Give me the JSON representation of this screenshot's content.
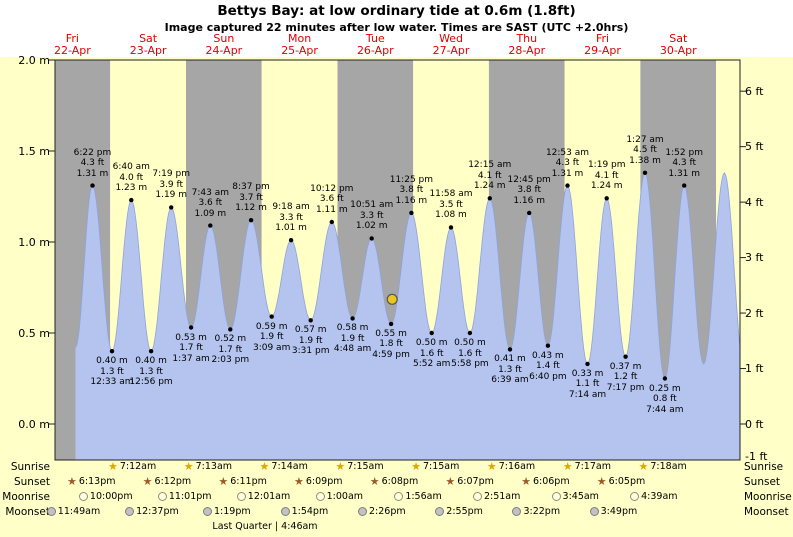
{
  "title": "Bettys Bay: at low  ordinary tide at 0.6m (1.8ft)",
  "subtitle": "Image captured 22 minutes after low water. Times are SAST (UTC +2.0hrs)",
  "days": [
    {
      "weekday": "Fri",
      "date": "22-Apr"
    },
    {
      "weekday": "Sat",
      "date": "23-Apr"
    },
    {
      "weekday": "Sun",
      "date": "24-Apr"
    },
    {
      "weekday": "Mon",
      "date": "25-Apr"
    },
    {
      "weekday": "Tue",
      "date": "26-Apr"
    },
    {
      "weekday": "Wed",
      "date": "27-Apr"
    },
    {
      "weekday": "Thu",
      "date": "28-Apr"
    },
    {
      "weekday": "Fri",
      "date": "29-Apr"
    },
    {
      "weekday": "Sat",
      "date": "30-Apr"
    }
  ],
  "axis": {
    "left_ticks": [
      "2.0 m",
      "1.5 m",
      "1.0 m",
      "0.5 m",
      "0.0 m"
    ],
    "right_ticks": [
      "6 ft",
      "5 ft",
      "4 ft",
      "3 ft",
      "2 ft",
      "1 ft",
      "0 ft",
      "-1 ft"
    ]
  },
  "chart_data": {
    "type": "area",
    "title": "Tide height curve for Bettys Bay, 22-Apr to 30-Apr",
    "ylim_m": [
      -0.2,
      2.0
    ],
    "ylim_ft": [
      -1,
      6
    ],
    "x_unit": "days (alternating shaded bands, one per day)",
    "tides": [
      {
        "day": 0,
        "hour": 18.367,
        "time": "6:22 pm",
        "height_m": 1.31,
        "height_ft": 4.3,
        "kind": "high"
      },
      {
        "day": 1,
        "hour": 0.55,
        "time": "12:33 am",
        "height_m": 0.4,
        "height_ft": 1.3,
        "kind": "low"
      },
      {
        "day": 1,
        "hour": 6.667,
        "time": "6:40 am",
        "height_m": 1.23,
        "height_ft": 4.0,
        "kind": "high"
      },
      {
        "day": 1,
        "hour": 12.933,
        "time": "12:56 pm",
        "height_m": 0.4,
        "height_ft": 1.3,
        "kind": "low"
      },
      {
        "day": 1,
        "hour": 19.317,
        "time": "7:19 pm",
        "height_m": 1.19,
        "height_ft": 3.9,
        "kind": "high"
      },
      {
        "day": 2,
        "hour": 1.617,
        "time": "1:37 am",
        "height_m": 0.53,
        "height_ft": 1.7,
        "kind": "low"
      },
      {
        "day": 2,
        "hour": 7.717,
        "time": "7:43 am",
        "height_m": 1.09,
        "height_ft": 3.6,
        "kind": "high"
      },
      {
        "day": 2,
        "hour": 14.05,
        "time": "2:03 pm",
        "height_m": 0.52,
        "height_ft": 1.7,
        "kind": "low"
      },
      {
        "day": 2,
        "hour": 20.617,
        "time": "8:37 pm",
        "height_m": 1.12,
        "height_ft": 3.7,
        "kind": "high"
      },
      {
        "day": 3,
        "hour": 3.15,
        "time": "3:09 am",
        "height_m": 0.59,
        "height_ft": 1.9,
        "kind": "low"
      },
      {
        "day": 3,
        "hour": 9.3,
        "time": "9:18 am",
        "height_m": 1.01,
        "height_ft": 3.3,
        "kind": "high"
      },
      {
        "day": 3,
        "hour": 15.517,
        "time": "3:31 pm",
        "height_m": 0.57,
        "height_ft": 1.9,
        "kind": "low"
      },
      {
        "day": 3,
        "hour": 22.2,
        "time": "10:12 pm",
        "height_m": 1.11,
        "height_ft": 3.6,
        "kind": "high"
      },
      {
        "day": 4,
        "hour": 4.8,
        "time": "4:48 am",
        "height_m": 0.58,
        "height_ft": 1.9,
        "kind": "low"
      },
      {
        "day": 4,
        "hour": 10.85,
        "time": "10:51 am",
        "height_m": 1.02,
        "height_ft": 3.3,
        "kind": "high"
      },
      {
        "day": 4,
        "hour": 16.983,
        "time": "4:59 pm",
        "height_m": 0.55,
        "height_ft": 1.8,
        "kind": "low"
      },
      {
        "day": 4,
        "hour": 23.417,
        "time": "11:25 pm",
        "height_m": 1.16,
        "height_ft": 3.8,
        "kind": "high"
      },
      {
        "day": 5,
        "hour": 5.867,
        "time": "5:52 am",
        "height_m": 0.5,
        "height_ft": 1.6,
        "kind": "low"
      },
      {
        "day": 5,
        "hour": 11.967,
        "time": "11:58 am",
        "height_m": 1.08,
        "height_ft": 3.5,
        "kind": "high"
      },
      {
        "day": 5,
        "hour": 17.967,
        "time": "5:58 pm",
        "height_m": 0.5,
        "height_ft": 1.6,
        "kind": "low"
      },
      {
        "day": 6,
        "hour": 0.25,
        "time": "12:15 am",
        "height_m": 1.24,
        "height_ft": 4.1,
        "kind": "high"
      },
      {
        "day": 6,
        "hour": 6.65,
        "time": "6:39 am",
        "height_m": 0.41,
        "height_ft": 1.3,
        "kind": "low"
      },
      {
        "day": 6,
        "hour": 12.75,
        "time": "12:45 pm",
        "height_m": 1.16,
        "height_ft": 3.8,
        "kind": "high"
      },
      {
        "day": 6,
        "hour": 18.667,
        "time": "6:40 pm",
        "height_m": 0.43,
        "height_ft": 1.4,
        "kind": "low"
      },
      {
        "day": 7,
        "hour": 0.883,
        "time": "12:53 am",
        "height_m": 1.31,
        "height_ft": 4.3,
        "kind": "high"
      },
      {
        "day": 7,
        "hour": 7.233,
        "time": "7:14 am",
        "height_m": 0.33,
        "height_ft": 1.1,
        "kind": "low"
      },
      {
        "day": 7,
        "hour": 13.317,
        "time": "1:19 pm",
        "height_m": 1.24,
        "height_ft": 4.1,
        "kind": "high"
      },
      {
        "day": 7,
        "hour": 19.283,
        "time": "7:17 pm",
        "height_m": 0.37,
        "height_ft": 1.2,
        "kind": "low"
      },
      {
        "day": 8,
        "hour": 1.45,
        "time": "1:27 am",
        "height_m": 1.38,
        "height_ft": 4.5,
        "kind": "high"
      },
      {
        "day": 8,
        "hour": 7.733,
        "time": "7:44 am",
        "height_m": 0.25,
        "height_ft": 0.8,
        "kind": "low"
      },
      {
        "day": 8,
        "hour": 13.867,
        "time": "1:52 pm",
        "height_m": 1.31,
        "height_ft": 4.3,
        "kind": "high"
      }
    ],
    "current_marker": {
      "day": 4,
      "hour": 17.35,
      "height_m": 0.685,
      "note": "yellow dot, 22 minutes after the 4:59 pm low water"
    }
  },
  "almanac": {
    "rows": [
      {
        "label": "Sunrise",
        "icon": "sunrise-star",
        "events": [
          {
            "day": 1,
            "hour": 7.2,
            "time": "7:12am"
          },
          {
            "day": 2,
            "hour": 7.217,
            "time": "7:13am"
          },
          {
            "day": 3,
            "hour": 7.233,
            "time": "7:14am"
          },
          {
            "day": 4,
            "hour": 7.25,
            "time": "7:15am"
          },
          {
            "day": 5,
            "hour": 7.25,
            "time": "7:15am"
          },
          {
            "day": 6,
            "hour": 7.267,
            "time": "7:16am"
          },
          {
            "day": 7,
            "hour": 7.283,
            "time": "7:17am"
          },
          {
            "day": 8,
            "hour": 7.3,
            "time": "7:18am"
          }
        ]
      },
      {
        "label": "Sunset",
        "icon": "sunset-star",
        "events": [
          {
            "day": 0,
            "hour": 18.217,
            "time": "6:13pm"
          },
          {
            "day": 1,
            "hour": 18.2,
            "time": "6:12pm"
          },
          {
            "day": 2,
            "hour": 18.183,
            "time": "6:11pm"
          },
          {
            "day": 3,
            "hour": 18.15,
            "time": "6:09pm"
          },
          {
            "day": 4,
            "hour": 18.133,
            "time": "6:08pm"
          },
          {
            "day": 5,
            "hour": 18.117,
            "time": "6:07pm"
          },
          {
            "day": 6,
            "hour": 18.1,
            "time": "6:06pm"
          },
          {
            "day": 7,
            "hour": 18.083,
            "time": "6:05pm"
          }
        ]
      },
      {
        "label": "Moonrise",
        "icon": "moon-bright",
        "events": [
          {
            "day": 0,
            "hour": 22.0,
            "time": "10:00pm"
          },
          {
            "day": 1,
            "hour": 23.017,
            "time": "11:01pm"
          },
          {
            "day": 3,
            "hour": 0.017,
            "time": "12:01am"
          },
          {
            "day": 4,
            "hour": 1.0,
            "time": "1:00am"
          },
          {
            "day": 5,
            "hour": 1.933,
            "time": "1:56am"
          },
          {
            "day": 6,
            "hour": 2.85,
            "time": "2:51am"
          },
          {
            "day": 7,
            "hour": 3.75,
            "time": "3:45am"
          },
          {
            "day": 8,
            "hour": 4.65,
            "time": "4:39am"
          }
        ]
      },
      {
        "label": "Moonset",
        "icon": "moon-dim",
        "events": [
          {
            "day": 0,
            "hour": 11.817,
            "time": "11:49am"
          },
          {
            "day": 1,
            "hour": 12.617,
            "time": "12:37pm"
          },
          {
            "day": 2,
            "hour": 13.317,
            "time": "1:19pm"
          },
          {
            "day": 3,
            "hour": 13.9,
            "time": "1:54pm"
          },
          {
            "day": 4,
            "hour": 14.433,
            "time": "2:26pm"
          },
          {
            "day": 5,
            "hour": 14.917,
            "time": "2:55pm"
          },
          {
            "day": 6,
            "hour": 15.367,
            "time": "3:22pm"
          },
          {
            "day": 7,
            "hour": 15.817,
            "time": "3:49pm"
          }
        ]
      }
    ],
    "phase_note": "Last Quarter | 4:46am"
  },
  "colors": {
    "band_gray": "#a6a6a6",
    "band_yellow": "#ffffc6",
    "page_yellow": "#ffffc8",
    "curve_fill": "#b4c4ef",
    "curve_stroke": "#8fa3dd",
    "day_label": "#e00000",
    "marker_fill": "#e8c81f",
    "marker_stroke": "#555555",
    "sunrise_star": "#dfa600",
    "sunset_star": "#9c5a28",
    "moon_bright_fill": "#ffffe2",
    "moon_bright_border": "#8f8f74",
    "moon_dim_fill": "#c2c2c2",
    "moon_dim_border": "#7d7d7d"
  }
}
